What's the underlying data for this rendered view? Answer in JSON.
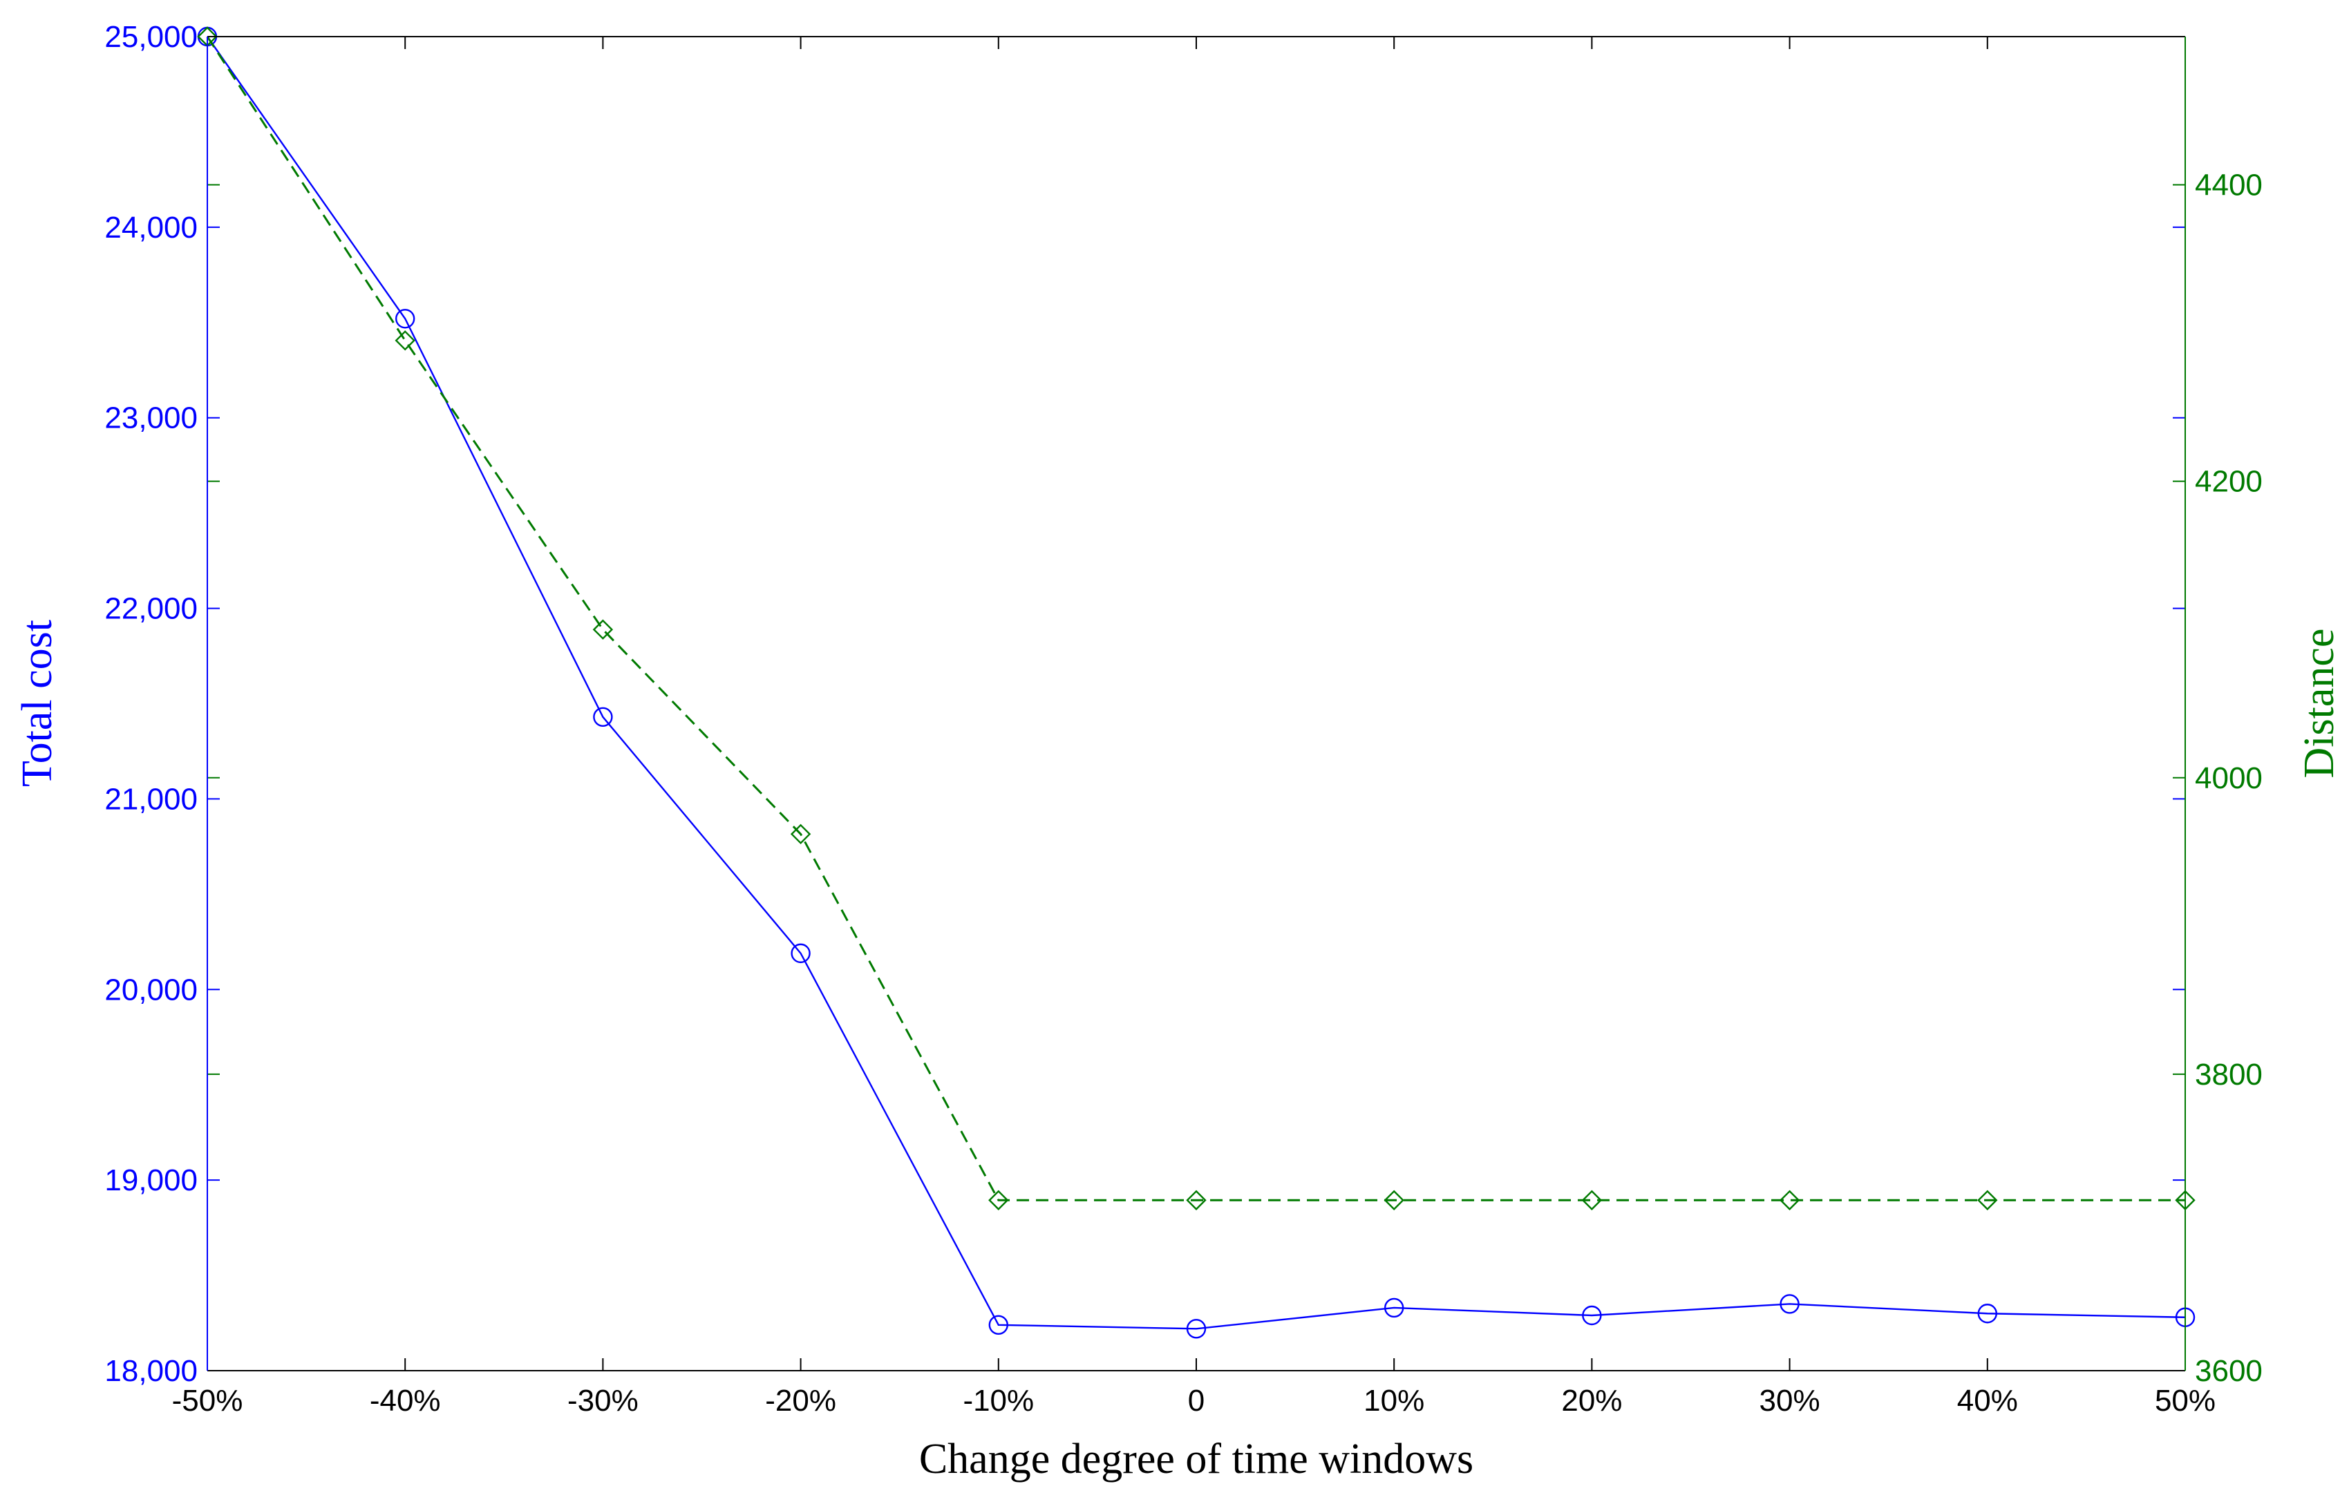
{
  "chart_data": {
    "type": "line",
    "xlabel": "Change degree of time windows",
    "categories": [
      "-50%",
      "-40%",
      "-30%",
      "-20%",
      "-10%",
      "0",
      "10%",
      "20%",
      "30%",
      "40%",
      "50%"
    ],
    "y_left": {
      "label": "Total cost",
      "range": [
        18000,
        25000
      ],
      "ticks": [
        18000,
        19000,
        20000,
        21000,
        22000,
        23000,
        24000,
        25000
      ],
      "tick_labels": [
        "18,000",
        "19,000",
        "20,000",
        "21,000",
        "22,000",
        "23,000",
        "24,000",
        "25,000"
      ],
      "color": "#0000ff"
    },
    "y_right": {
      "label": "Distance",
      "range": [
        3600,
        4500
      ],
      "ticks": [
        3600,
        3800,
        4000,
        4200,
        4400
      ],
      "tick_labels": [
        "3600",
        "3800",
        "4000",
        "4200",
        "4400"
      ],
      "color": "#007a00"
    },
    "series": [
      {
        "axis": "left",
        "color": "#0000ff",
        "marker": "circle",
        "line_style": "solid",
        "values": [
          25000,
          23520,
          21430,
          20190,
          18240,
          18220,
          18330,
          18290,
          18350,
          18300,
          18280
        ]
      },
      {
        "axis": "right",
        "color": "#007a00",
        "marker": "diamond",
        "line_style": "dashed",
        "values": [
          4500,
          4295,
          4100,
          3962,
          3715,
          3715,
          3715,
          3715,
          3715,
          3715,
          3715
        ]
      }
    ],
    "grid": false,
    "legend": "none"
  }
}
